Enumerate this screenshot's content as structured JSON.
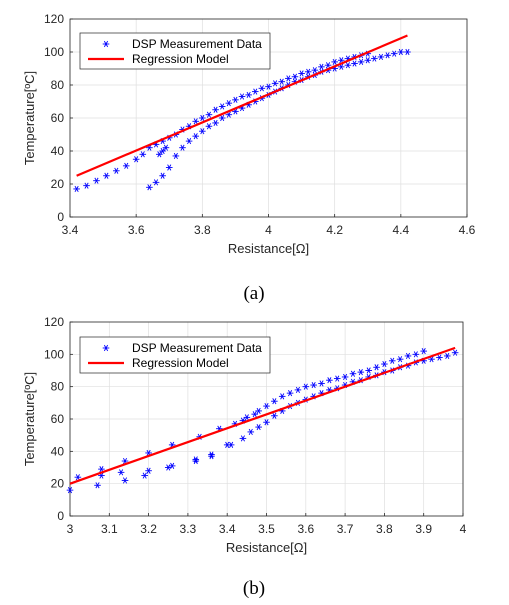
{
  "chart_data": [
    {
      "type": "scatter",
      "panel_label": "(a)",
      "xlabel": "Resistance[Ω]",
      "ylabel": "Temperature[ºC]",
      "xlim": [
        3.4,
        4.6
      ],
      "ylim": [
        0,
        120
      ],
      "xticks": [
        "3.4",
        "3.6",
        "3.8",
        "4",
        "4.2",
        "4.4",
        "4.6"
      ],
      "yticks": [
        "0",
        "20",
        "40",
        "60",
        "80",
        "100",
        "120"
      ],
      "grid": true,
      "legend_position": "top-left",
      "series": [
        {
          "name": "DSP Measurement Data",
          "marker": "asterisk",
          "color": "#0000ff",
          "x": [
            3.42,
            3.45,
            3.48,
            3.51,
            3.54,
            3.57,
            3.6,
            3.62,
            3.64,
            3.66,
            3.68,
            3.7,
            3.72,
            3.74,
            3.76,
            3.78,
            3.8,
            3.82,
            3.84,
            3.86,
            3.88,
            3.9,
            3.92,
            3.94,
            3.96,
            3.98,
            4.0,
            4.02,
            4.04,
            4.06,
            4.08,
            4.1,
            4.12,
            4.14,
            4.16,
            4.18,
            4.2,
            4.22,
            4.24,
            4.26,
            4.28,
            4.3,
            3.64,
            3.66,
            3.68,
            3.7,
            3.72,
            3.74,
            3.76,
            3.78,
            3.8,
            3.82,
            3.84,
            3.86,
            3.88,
            3.9,
            3.92,
            3.94,
            3.96,
            3.98,
            4.0,
            4.02,
            4.04,
            4.06,
            4.08,
            4.1,
            4.12,
            4.14,
            4.16,
            4.18,
            4.2,
            4.22,
            4.24,
            4.26,
            4.28,
            4.3,
            4.32,
            4.34,
            4.36,
            4.38,
            4.4,
            4.42,
            3.67,
            3.68,
            3.69
          ],
          "y": [
            17,
            19,
            22,
            25,
            28,
            31,
            35,
            38,
            42,
            44,
            46,
            48,
            50,
            53,
            55,
            58,
            60,
            62,
            65,
            67,
            69,
            71,
            73,
            74,
            76,
            78,
            79,
            81,
            82,
            84,
            85,
            87,
            88,
            89,
            91,
            92,
            94,
            95,
            96,
            97,
            98,
            99,
            18,
            21,
            25,
            30,
            37,
            42,
            46,
            49,
            52,
            55,
            57,
            60,
            62,
            64,
            66,
            68,
            70,
            72,
            74,
            76,
            78,
            80,
            82,
            83,
            85,
            86,
            88,
            89,
            90,
            91,
            92,
            93,
            94,
            95,
            96,
            97,
            98,
            99,
            100,
            100,
            38,
            40,
            42
          ]
        },
        {
          "name": "Regression Model",
          "type": "line",
          "color": "#ff0000",
          "x": [
            3.42,
            4.42
          ],
          "y": [
            25,
            110
          ]
        }
      ]
    },
    {
      "type": "scatter",
      "panel_label": "(b)",
      "xlabel": "Resistance[Ω]",
      "ylabel": "Temperature[ºC]",
      "xlim": [
        3,
        4
      ],
      "ylim": [
        0,
        120
      ],
      "xticks": [
        "3",
        "3.1",
        "3.2",
        "3.3",
        "3.4",
        "3.5",
        "3.6",
        "3.7",
        "3.8",
        "3.9",
        "4"
      ],
      "yticks": [
        "0",
        "20",
        "40",
        "60",
        "80",
        "100",
        "120"
      ],
      "grid": true,
      "legend_position": "top-left",
      "series": [
        {
          "name": "DSP Measurement Data",
          "marker": "asterisk",
          "color": "#0000ff",
          "x": [
            3.0,
            3.02,
            3.07,
            3.08,
            3.13,
            3.14,
            3.19,
            3.2,
            3.25,
            3.26,
            3.32,
            3.33,
            3.36,
            3.38,
            3.41,
            3.42,
            3.44,
            3.45,
            3.47,
            3.48,
            3.5,
            3.52,
            3.54,
            3.56,
            3.58,
            3.6,
            3.62,
            3.64,
            3.66,
            3.68,
            3.7,
            3.72,
            3.74,
            3.76,
            3.78,
            3.8,
            3.82,
            3.84,
            3.86,
            3.88,
            3.9,
            3.08,
            3.14,
            3.2,
            3.26,
            3.32,
            3.36,
            3.4,
            3.44,
            3.46,
            3.48,
            3.5,
            3.52,
            3.54,
            3.56,
            3.58,
            3.6,
            3.62,
            3.64,
            3.66,
            3.68,
            3.7,
            3.72,
            3.74,
            3.76,
            3.78,
            3.8,
            3.82,
            3.84,
            3.86,
            3.88,
            3.9,
            3.92,
            3.94,
            3.96,
            3.98
          ],
          "y": [
            16,
            24,
            19,
            29,
            27,
            22,
            25,
            39,
            30,
            44,
            34,
            49,
            38,
            54,
            44,
            57,
            59,
            61,
            63,
            65,
            68,
            71,
            74,
            76,
            78,
            80,
            81,
            82,
            84,
            85,
            86,
            88,
            89,
            90,
            92,
            94,
            96,
            97,
            99,
            100,
            102,
            25,
            34,
            28,
            31,
            35,
            37,
            44,
            48,
            52,
            55,
            58,
            62,
            65,
            68,
            70,
            72,
            74,
            76,
            78,
            79,
            81,
            83,
            84,
            86,
            87,
            89,
            90,
            92,
            93,
            95,
            96,
            97,
            98,
            99,
            101
          ]
        },
        {
          "name": "Regression Model",
          "type": "line",
          "color": "#ff0000",
          "x": [
            3.0,
            3.98
          ],
          "y": [
            20,
            104
          ]
        }
      ]
    }
  ]
}
